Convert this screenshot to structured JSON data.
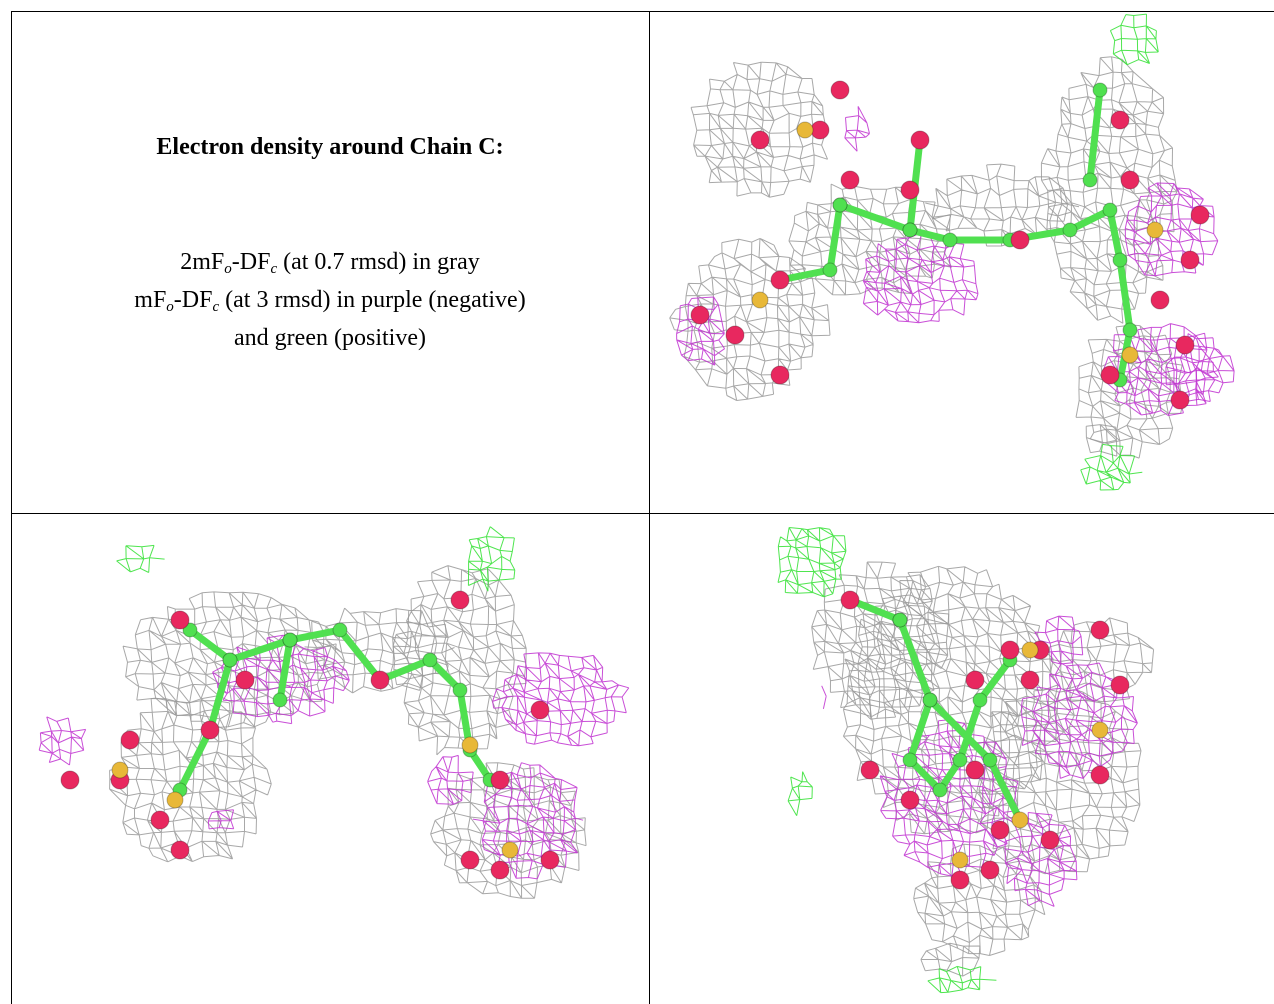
{
  "header": {
    "title": "Electron density around Chain C:"
  },
  "legend": {
    "lines": [
      {
        "parts": [
          "2mF",
          "o",
          "-DF",
          "c",
          " (at 0.7 rmsd) in gray"
        ]
      },
      {
        "parts": [
          "mF",
          "o",
          "-DF",
          "c",
          " (at 3 rmsd) in purple (negative)"
        ]
      },
      {
        "parts": [
          "and green (positive)"
        ]
      }
    ]
  }
}
